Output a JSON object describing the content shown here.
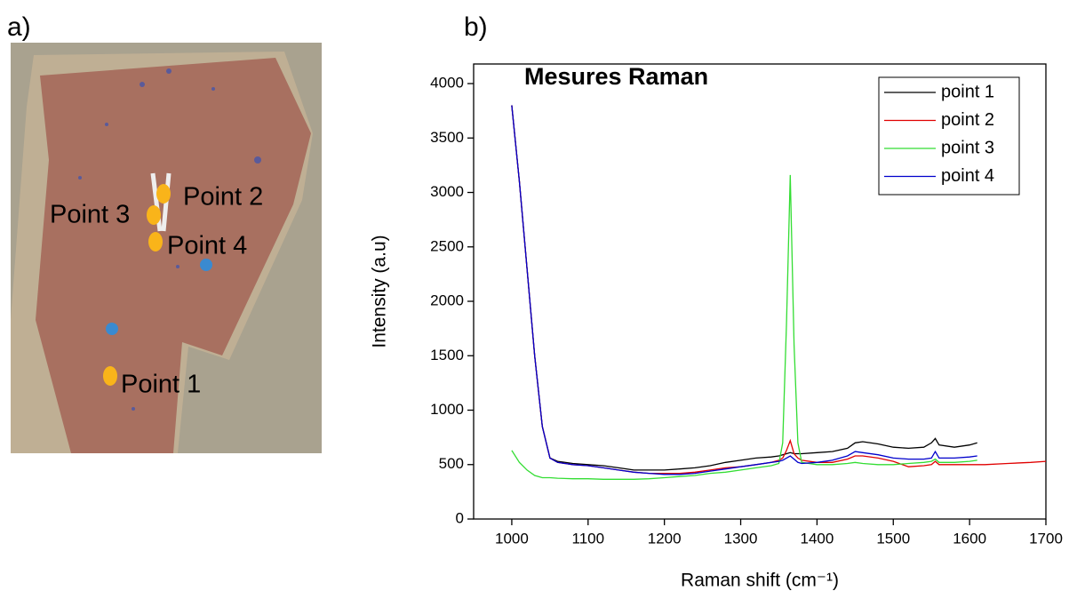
{
  "panel_a": {
    "label": "a)",
    "points": [
      "Point 1",
      "Point 2",
      "Point 3",
      "Point 4"
    ]
  },
  "panel_b": {
    "label": "b)"
  },
  "chart_data": {
    "type": "line",
    "title": "Mesures Raman",
    "x_label": "Raman shift (cm⁻¹)",
    "y_label": "Intensity (a.u)",
    "xlim": [
      950,
      1700
    ],
    "ylim": [
      0,
      4180
    ],
    "xticks": [
      1000,
      1100,
      1200,
      1300,
      1400,
      1500,
      1600,
      1700
    ],
    "yticks": [
      0,
      500,
      1000,
      1500,
      2000,
      2500,
      3000,
      3500,
      4000
    ],
    "legend": "upper right",
    "x": [
      1000,
      1010,
      1020,
      1030,
      1040,
      1050,
      1060,
      1080,
      1100,
      1120,
      1140,
      1160,
      1180,
      1200,
      1220,
      1240,
      1260,
      1280,
      1300,
      1320,
      1340,
      1350,
      1355,
      1360,
      1365,
      1370,
      1375,
      1380,
      1400,
      1420,
      1440,
      1450,
      1460,
      1480,
      1500,
      1520,
      1540,
      1550,
      1555,
      1560,
      1580,
      1600,
      1610,
      1620,
      1650,
      1680,
      1700
    ],
    "series": [
      {
        "name": "point 1",
        "color": "#000000",
        "values": [
          3800,
          3100,
          2300,
          1500,
          850,
          560,
          530,
          510,
          500,
          490,
          470,
          450,
          450,
          450,
          460,
          470,
          490,
          520,
          540,
          560,
          570,
          580,
          590,
          600,
          610,
          600,
          600,
          600,
          610,
          620,
          650,
          700,
          710,
          690,
          660,
          650,
          660,
          700,
          740,
          680,
          660,
          680,
          700,
          null,
          null,
          null,
          null
        ]
      },
      {
        "name": "point 2",
        "color": "#e00000",
        "values": [
          3800,
          3100,
          2300,
          1500,
          850,
          560,
          520,
          500,
          490,
          470,
          450,
          430,
          420,
          420,
          420,
          430,
          450,
          470,
          480,
          500,
          520,
          540,
          560,
          630,
          720,
          600,
          560,
          540,
          520,
          520,
          550,
          580,
          580,
          560,
          530,
          480,
          490,
          500,
          530,
          500,
          500,
          500,
          500,
          500,
          510,
          520,
          530
        ]
      },
      {
        "name": "point 3",
        "color": "#33dd33",
        "values": [
          630,
          520,
          450,
          400,
          380,
          380,
          375,
          370,
          370,
          365,
          365,
          365,
          370,
          380,
          390,
          400,
          420,
          430,
          450,
          470,
          490,
          510,
          700,
          1800,
          3160,
          1600,
          700,
          520,
          500,
          500,
          510,
          520,
          510,
          500,
          500,
          510,
          520,
          530,
          550,
          520,
          520,
          530,
          540,
          null,
          null,
          null,
          null
        ]
      },
      {
        "name": "point 4",
        "color": "#0000cc",
        "values": [
          3800,
          3100,
          2300,
          1500,
          850,
          560,
          520,
          500,
          490,
          470,
          450,
          430,
          420,
          410,
          410,
          420,
          440,
          460,
          480,
          500,
          520,
          530,
          540,
          560,
          580,
          550,
          520,
          510,
          520,
          540,
          580,
          620,
          610,
          590,
          560,
          550,
          550,
          560,
          620,
          560,
          560,
          570,
          580,
          null,
          null,
          null,
          null
        ]
      }
    ]
  }
}
